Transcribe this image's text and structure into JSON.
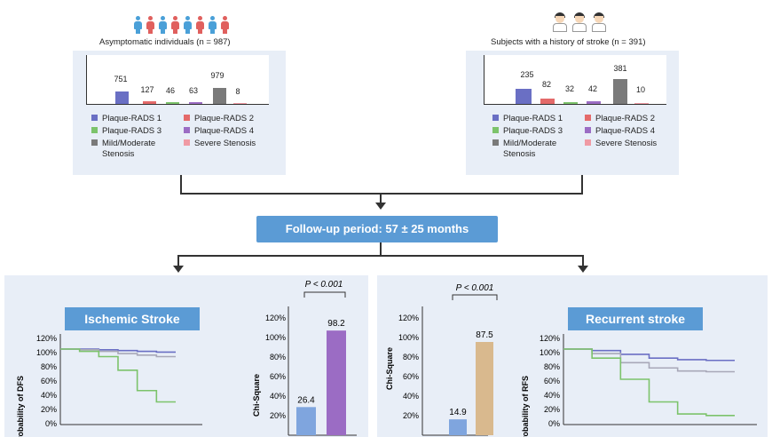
{
  "colors": {
    "plaque1": "#6a6fc4",
    "plaque2": "#e46a6a",
    "plaque3": "#7cc36b",
    "plaque4": "#9b6cc4",
    "mild": "#7a7a7a",
    "severe": "#f09aa4",
    "accent": "#5b9bd5",
    "panel": "#e8eef7"
  },
  "cohorts": [
    {
      "title": "Asymptomatic individuals (n = 987)",
      "icon": "people-icon",
      "values": [
        "751",
        "127",
        "46",
        "63",
        "979",
        "8"
      ]
    },
    {
      "title": "Subjects with a history of stroke (n = 391)",
      "icon": "doctor-icon",
      "values": [
        "235",
        "82",
        "32",
        "42",
        "381",
        "10"
      ]
    }
  ],
  "legend": {
    "plaque1": "Plaque-RADS 1",
    "plaque2": "Plaque-RADS 2",
    "plaque3": "Plaque-RADS 3",
    "plaque4": "Plaque-RADS 4",
    "mild_line1": "Mild/Moderate",
    "mild_line2": "Stenosis",
    "severe": "Severe Stenosis"
  },
  "follow_up": "Follow-up period: 57 ± 25 months",
  "left_panel": {
    "km_title": "Ischemic Stroke",
    "km_ylabel": "Probability of DFS",
    "chi_ylabel": "Chi-Square",
    "p_value": "P < 0.001",
    "bar_values": [
      "26.4",
      "98.2"
    ]
  },
  "right_panel": {
    "km_title": "Recurrent stroke",
    "km_ylabel": "Probability of RFS",
    "chi_ylabel": "Chi-Square",
    "p_value": "P < 0.001",
    "bar_values": [
      "14.9",
      "87.5"
    ]
  },
  "y_ticks": [
    "120%",
    "100%",
    "80%",
    "60%",
    "40%",
    "20%",
    "0%"
  ],
  "chart_data": [
    {
      "type": "bar",
      "title": "Asymptomatic individuals (n = 987)",
      "categories": [
        "Plaque-RADS 1",
        "Plaque-RADS 2",
        "Plaque-RADS 3",
        "Plaque-RADS 4",
        "Mild/Moderate Stenosis",
        "Severe Stenosis"
      ],
      "values": [
        751,
        127,
        46,
        63,
        979,
        8
      ]
    },
    {
      "type": "bar",
      "title": "Subjects with a history of stroke (n = 391)",
      "categories": [
        "Plaque-RADS 1",
        "Plaque-RADS 2",
        "Plaque-RADS 3",
        "Plaque-RADS 4",
        "Mild/Moderate Stenosis",
        "Severe Stenosis"
      ],
      "values": [
        235,
        82,
        32,
        42,
        381,
        10
      ]
    },
    {
      "type": "line",
      "title": "Ischemic Stroke",
      "ylabel": "Probability of DFS",
      "ylim": [
        0,
        120
      ],
      "series": [
        {
          "values": [
            100,
            100,
            99,
            98,
            97,
            96,
            96
          ]
        },
        {
          "values": [
            100,
            99,
            97,
            94,
            92,
            90,
            90
          ]
        },
        {
          "values": [
            100,
            97,
            90,
            72,
            45,
            30,
            30
          ]
        }
      ]
    },
    {
      "type": "bar",
      "ylabel": "Chi-Square",
      "ylim": [
        0,
        120
      ],
      "values": [
        26.4,
        98.2
      ]
    },
    {
      "type": "bar",
      "ylabel": "Chi-Square",
      "ylim": [
        0,
        120
      ],
      "values": [
        14.9,
        87.5
      ]
    },
    {
      "type": "line",
      "title": "Recurrent stroke",
      "ylabel": "Probability of RFS",
      "ylim": [
        0,
        120
      ],
      "series": [
        {
          "values": [
            100,
            98,
            93,
            88,
            86,
            85,
            85
          ]
        },
        {
          "values": [
            100,
            94,
            82,
            75,
            71,
            70,
            70
          ]
        },
        {
          "values": [
            100,
            88,
            60,
            30,
            14,
            12,
            12
          ]
        }
      ]
    }
  ]
}
